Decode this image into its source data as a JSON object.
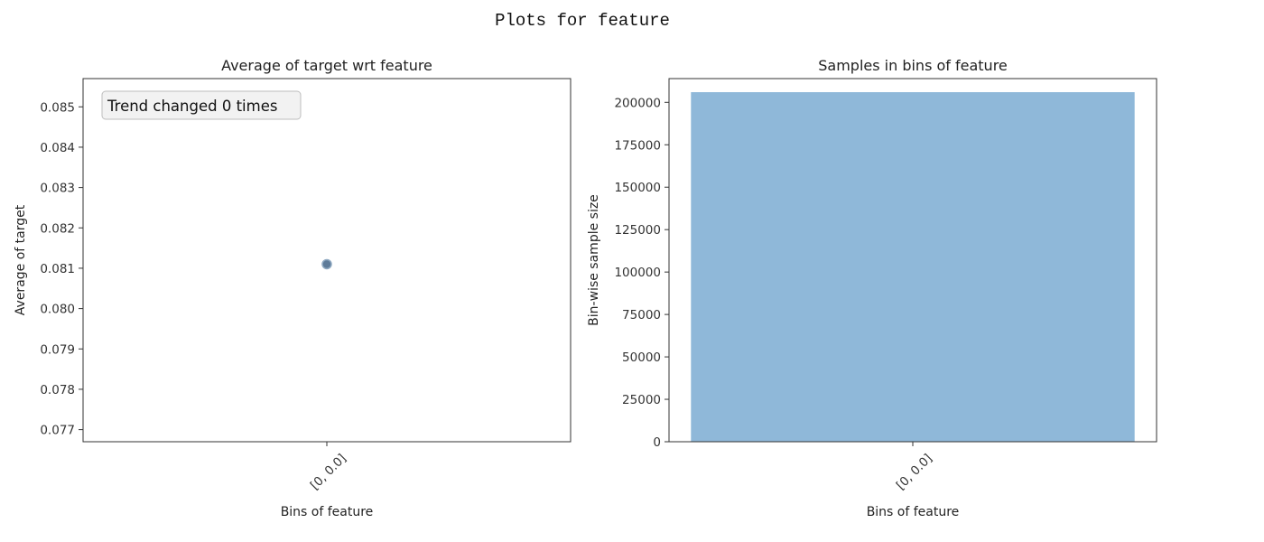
{
  "figure": {
    "suptitle": "Plots for feature"
  },
  "chart_data": [
    {
      "type": "scatter",
      "title": "Average of target wrt feature",
      "xlabel": "Bins of feature",
      "ylabel": "Average of target",
      "categories": [
        "[0, 0.0]"
      ],
      "values": [
        0.0811
      ],
      "ylim": [
        0.0767,
        0.0857
      ],
      "yticks": [
        0.077,
        0.078,
        0.079,
        0.08,
        0.081,
        0.082,
        0.083,
        0.084,
        0.085
      ],
      "ytick_labels": [
        "0.077",
        "0.078",
        "0.079",
        "0.080",
        "0.081",
        "0.082",
        "0.083",
        "0.084",
        "0.085"
      ],
      "annotation": "Trend changed 0 times",
      "annotation_position": "top-left",
      "marker_color": "#4c6d8e",
      "grid": false
    },
    {
      "type": "bar",
      "title": "Samples in bins of feature",
      "xlabel": "Bins of feature",
      "ylabel": "Bin-wise sample size",
      "categories": [
        "[0, 0.0]"
      ],
      "values": [
        206000
      ],
      "ylim": [
        0,
        214000
      ],
      "yticks": [
        0,
        25000,
        50000,
        75000,
        100000,
        125000,
        150000,
        175000,
        200000
      ],
      "ytick_labels": [
        "0",
        "25000",
        "50000",
        "75000",
        "100000",
        "125000",
        "150000",
        "175000",
        "200000"
      ],
      "bar_color": "#8fb8d9",
      "grid": false
    }
  ]
}
